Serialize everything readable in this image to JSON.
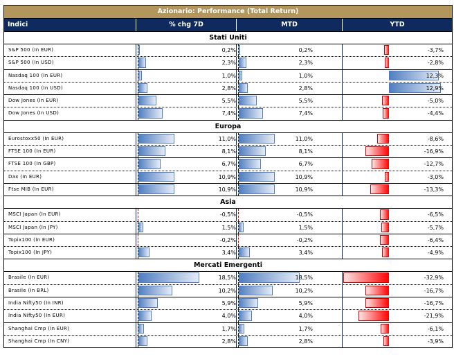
{
  "title": "Azionario: Performance (Total Return)",
  "headers": [
    "Indici",
    "% chg 7D",
    "MTD",
    "YTD"
  ],
  "colors": {
    "title_bg": "#b3965c",
    "header_bg": "#0f2a5f",
    "positive_bar": "#4f7dc0",
    "negative_bar": "#ff0000"
  },
  "sections": [
    {
      "name": "Stati Uniti",
      "rows": [
        {
          "name": "S&P 500 (In EUR)",
          "d7": "0,2%",
          "mtd": "0,2%",
          "ytd": "-3,7%",
          "d7v": 0.2,
          "mtdv": 0.2,
          "ytdv": -3.7
        },
        {
          "name": "S&P 500 (In USD)",
          "d7": "2,3%",
          "mtd": "2,3%",
          "ytd": "-2,8%",
          "d7v": 2.3,
          "mtdv": 2.3,
          "ytdv": -2.8
        },
        {
          "name": "Nasdaq 100 (In EUR)",
          "d7": "1,0%",
          "mtd": "1,0%",
          "ytd": "12,3%",
          "d7v": 1.0,
          "mtdv": 1.0,
          "ytdv": 12.3
        },
        {
          "name": "Nasdaq 100 (In USD)",
          "d7": "2,8%",
          "mtd": "2,8%",
          "ytd": "12,9%",
          "d7v": 2.8,
          "mtdv": 2.8,
          "ytdv": 12.9
        },
        {
          "name": "Dow Jones (In EUR)",
          "d7": "5,5%",
          "mtd": "5,5%",
          "ytd": "-5,0%",
          "d7v": 5.5,
          "mtdv": 5.5,
          "ytdv": -5.0
        },
        {
          "name": "Dow Jones (In USD)",
          "d7": "7,4%",
          "mtd": "7,4%",
          "ytd": "-4,4%",
          "d7v": 7.4,
          "mtdv": 7.4,
          "ytdv": -4.4
        }
      ]
    },
    {
      "name": "Europa",
      "rows": [
        {
          "name": "Eurostoxx50 (In EUR)",
          "d7": "11,0%",
          "mtd": "11,0%",
          "ytd": "-8,6%",
          "d7v": 11.0,
          "mtdv": 11.0,
          "ytdv": -8.6
        },
        {
          "name": "FTSE 100 (In EUR)",
          "d7": "8,1%",
          "mtd": "8,1%",
          "ytd": "-16,9%",
          "d7v": 8.1,
          "mtdv": 8.1,
          "ytdv": -16.9
        },
        {
          "name": "FTSE 100 (In GBP)",
          "d7": "6,7%",
          "mtd": "6,7%",
          "ytd": "-12,7%",
          "d7v": 6.7,
          "mtdv": 6.7,
          "ytdv": -12.7
        },
        {
          "name": "Dax (In EUR)",
          "d7": "10,9%",
          "mtd": "10,9%",
          "ytd": "-3,0%",
          "d7v": 10.9,
          "mtdv": 10.9,
          "ytdv": -3.0
        },
        {
          "name": "Ftse MIB (In EUR)",
          "d7": "10,9%",
          "mtd": "10,9%",
          "ytd": "-13,3%",
          "d7v": 10.9,
          "mtdv": 10.9,
          "ytdv": -13.3
        }
      ]
    },
    {
      "name": "Asia",
      "rows": [
        {
          "name": "MSCI Japan (In EUR)",
          "d7": "-0,5%",
          "mtd": "-0,5%",
          "ytd": "-6,5%",
          "d7v": -0.5,
          "mtdv": -0.5,
          "ytdv": -6.5
        },
        {
          "name": "MSCI Japan (In JPY)",
          "d7": "1,5%",
          "mtd": "1,5%",
          "ytd": "-5,7%",
          "d7v": 1.5,
          "mtdv": 1.5,
          "ytdv": -5.7
        },
        {
          "name": "Topix100 (In EUR)",
          "d7": "-0,2%",
          "mtd": "-0,2%",
          "ytd": "-6,4%",
          "d7v": -0.2,
          "mtdv": -0.2,
          "ytdv": -6.4
        },
        {
          "name": "Topix100 (In JPY)",
          "d7": "3,4%",
          "mtd": "3,4%",
          "ytd": "-4,9%",
          "d7v": 3.4,
          "mtdv": 3.4,
          "ytdv": -4.9
        }
      ]
    },
    {
      "name": "Mercati Emergenti",
      "rows": [
        {
          "name": "Brasile (In EUR)",
          "d7": "18,5%",
          "mtd": "18,5%",
          "ytd": "-32,9%",
          "d7v": 18.5,
          "mtdv": 18.5,
          "ytdv": -32.9
        },
        {
          "name": "Brasile (In BRL)",
          "d7": "10,2%",
          "mtd": "10,2%",
          "ytd": "-16,7%",
          "d7v": 10.2,
          "mtdv": 10.2,
          "ytdv": -16.7
        },
        {
          "name": "India Nifty50 (In INR)",
          "d7": "5,9%",
          "mtd": "5,9%",
          "ytd": "-16,7%",
          "d7v": 5.9,
          "mtdv": 5.9,
          "ytdv": -16.7
        },
        {
          "name": "India Nifty50 (In EUR)",
          "d7": "4,0%",
          "mtd": "4,0%",
          "ytd": "-21,9%",
          "d7v": 4.0,
          "mtdv": 4.0,
          "ytdv": -21.9
        },
        {
          "name": "Shanghai Cmp (In EUR)",
          "d7": "1,7%",
          "mtd": "1,7%",
          "ytd": "-6,1%",
          "d7v": 1.7,
          "mtdv": 1.7,
          "ytdv": -6.1
        },
        {
          "name": "Shanghai Cmp (In CNY)",
          "d7": "2,8%",
          "mtd": "2,8%",
          "ytd": "-3,9%",
          "d7v": 2.8,
          "mtdv": 2.8,
          "ytdv": -3.9
        }
      ]
    }
  ]
}
